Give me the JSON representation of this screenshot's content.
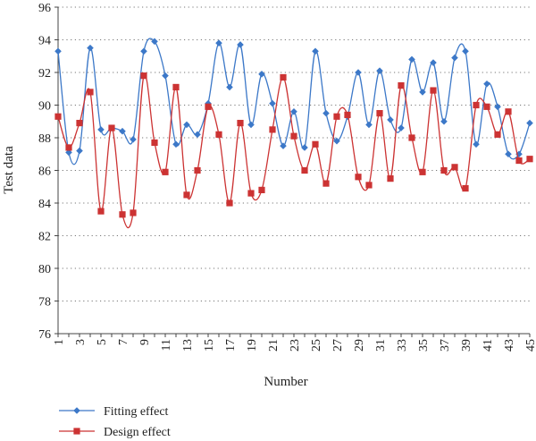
{
  "chart_data": {
    "type": "line",
    "xlabel": "Number",
    "ylabel": "Test data",
    "ylim": [
      76,
      96
    ],
    "yticks": [
      76,
      78,
      80,
      82,
      84,
      86,
      88,
      90,
      92,
      94,
      96
    ],
    "xlim": [
      1,
      45
    ],
    "xticks": [
      1,
      3,
      5,
      7,
      9,
      11,
      13,
      15,
      17,
      19,
      21,
      23,
      25,
      27,
      29,
      31,
      33,
      35,
      37,
      39,
      41,
      43,
      45
    ],
    "grid": "horizontal-dotted",
    "legend_position": "bottom-left",
    "x": [
      1,
      2,
      3,
      4,
      5,
      6,
      7,
      8,
      9,
      10,
      11,
      12,
      13,
      14,
      15,
      16,
      17,
      18,
      19,
      20,
      21,
      22,
      23,
      24,
      25,
      26,
      27,
      28,
      29,
      30,
      31,
      32,
      33,
      34,
      35,
      36,
      37,
      38,
      39,
      40,
      41,
      42,
      43,
      44,
      45
    ],
    "series": [
      {
        "name": "Fitting effect",
        "color": "#3c78c8",
        "marker": "diamond",
        "values": [
          93.3,
          87.1,
          87.2,
          93.5,
          88.5,
          88.6,
          88.4,
          87.9,
          93.3,
          93.9,
          91.8,
          87.6,
          88.8,
          88.2,
          90.1,
          93.8,
          91.1,
          93.7,
          88.8,
          91.9,
          90.1,
          87.5,
          89.6,
          87.4,
          93.3,
          89.5,
          87.8,
          89.3,
          92.0,
          88.8,
          92.1,
          89.1,
          88.6,
          92.8,
          90.8,
          92.6,
          89.0,
          92.9,
          93.3,
          87.6,
          91.3,
          89.9,
          87.0,
          87.0,
          88.9
        ]
      },
      {
        "name": "Design effect",
        "color": "#cc3333",
        "marker": "square",
        "values": [
          89.3,
          87.4,
          88.9,
          90.8,
          83.5,
          88.6,
          83.3,
          83.4,
          91.8,
          87.7,
          85.9,
          91.1,
          84.5,
          86.0,
          89.9,
          88.2,
          84.0,
          88.9,
          84.6,
          84.8,
          88.5,
          91.7,
          88.1,
          86.0,
          87.6,
          85.2,
          89.3,
          89.4,
          85.6,
          85.1,
          89.5,
          85.5,
          91.2,
          88.0,
          85.9,
          90.9,
          86.0,
          86.2,
          84.9,
          90.0,
          89.9,
          88.2,
          89.6,
          86.6,
          86.7
        ]
      }
    ]
  }
}
